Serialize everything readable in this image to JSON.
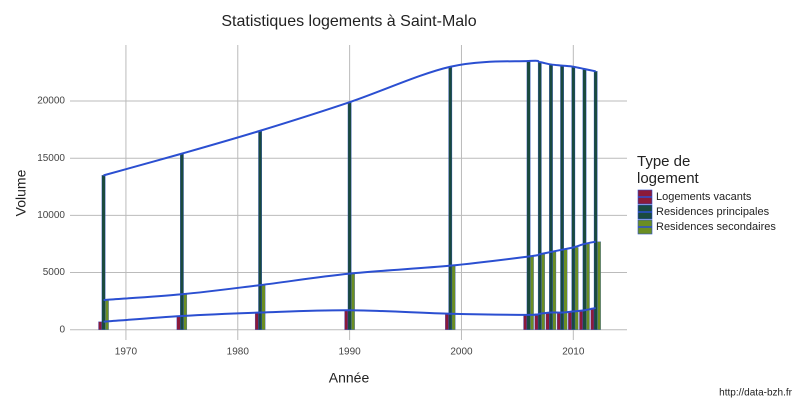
{
  "chart_data": {
    "type": "bar",
    "title": "Statistiques logements à Saint-Malo",
    "x_label": "Année",
    "y_label": "Volume",
    "legend_title": "Type de\nlogement",
    "source": "http://data-bzh.fr",
    "x": [
      1968,
      1975,
      1982,
      1990,
      1999,
      2006,
      2007,
      2008,
      2009,
      2010,
      2011,
      2012
    ],
    "series": [
      {
        "name": "Logements vacants",
        "color": "#8b1a3a",
        "values": [
          700,
          1200,
          1500,
          1700,
          1400,
          1300,
          1400,
          1500,
          1500,
          1600,
          1700,
          1900
        ]
      },
      {
        "name": "Residences principales",
        "color": "#1a4a3f",
        "values": [
          13500,
          15400,
          17400,
          19900,
          23000,
          23500,
          23400,
          23200,
          23100,
          23000,
          22800,
          22600
        ]
      },
      {
        "name": "Residences secondaires",
        "color": "#6b8e23",
        "values": [
          2600,
          3100,
          3900,
          4900,
          5600,
          6400,
          6600,
          6800,
          7000,
          7200,
          7500,
          7700
        ]
      }
    ],
    "trend_color": "#2b4fd1",
    "xlim": [
      1965,
      2014.8
    ],
    "xticks": [
      1970,
      1980,
      1990,
      2000,
      2010
    ],
    "ylim": [
      -900,
      24900
    ],
    "yticks": [
      0,
      5000,
      10000,
      15000,
      20000
    ],
    "grid": true,
    "legend_position": "right"
  }
}
